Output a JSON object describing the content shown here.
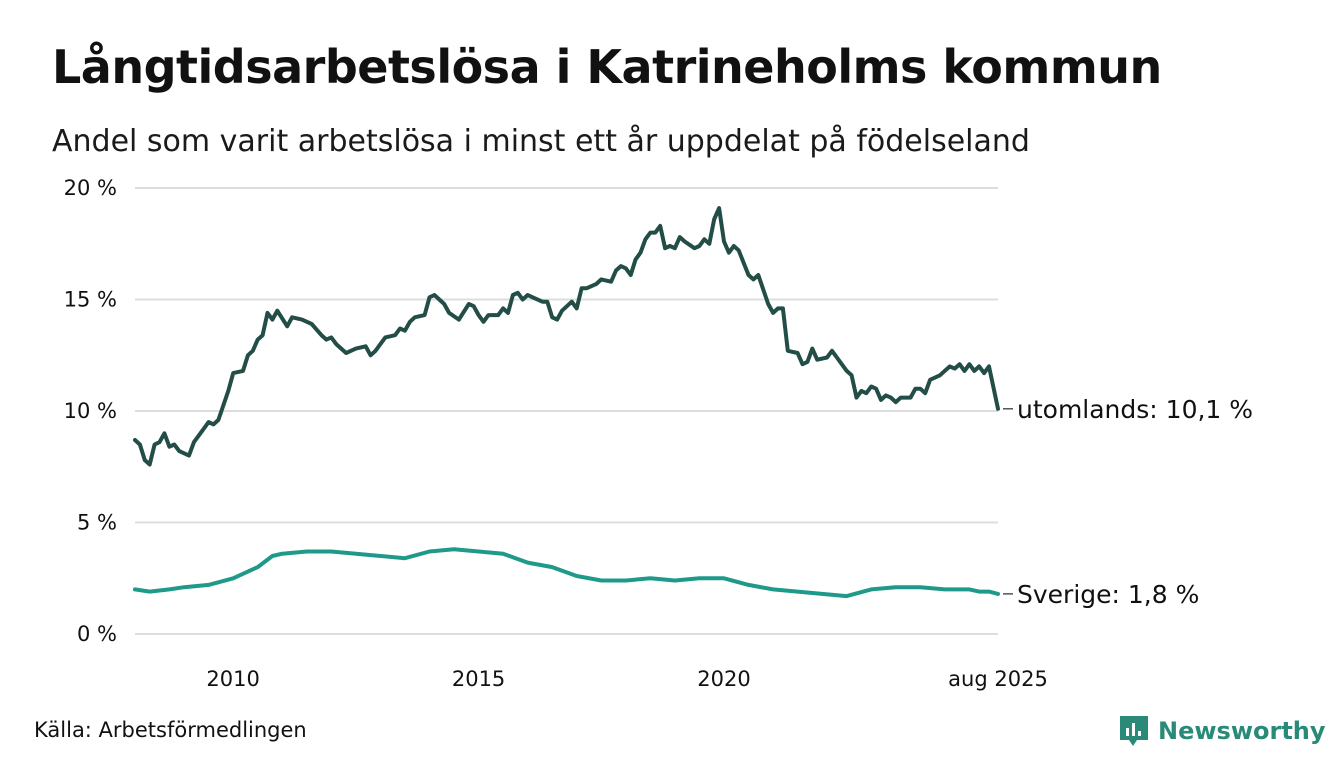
{
  "header": {
    "title": "Långtidsarbetslösa i Katrineholms kommun",
    "subtitle": "Andel som varit arbetslösa i minst ett år uppdelat på födelseland"
  },
  "footer": {
    "source": "Källa: Arbetsförmedlingen",
    "brand": "Newsworthy"
  },
  "colors": {
    "utomlands": "#234d47",
    "sverige": "#1f9a8a",
    "grid": "#dddddd",
    "brand": "#2a8a78"
  },
  "chart_data": {
    "type": "line",
    "x_start": "2008-01",
    "x_end": "2025-08",
    "x_step": "month",
    "xlim": [
      2008.0,
      2025.583
    ],
    "ylim": [
      0,
      20
    ],
    "y_ticks": [
      0,
      5,
      10,
      15,
      20
    ],
    "y_tick_labels": [
      "0 %",
      "5 %",
      "10 %",
      "15 %",
      "20 %"
    ],
    "x_ticks": [
      2010,
      2015,
      2020,
      2025.583
    ],
    "x_tick_labels": [
      "2010",
      "2015",
      "2020",
      "aug 2025"
    ],
    "grid": "horizontal",
    "series": [
      {
        "name": "utomlands",
        "label": "utomlands: 10,1 %",
        "anchors": [
          [
            2008.0,
            8.7
          ],
          [
            2008.1,
            8.5
          ],
          [
            2008.2,
            7.8
          ],
          [
            2008.3,
            7.6
          ],
          [
            2008.4,
            8.5
          ],
          [
            2008.5,
            8.6
          ],
          [
            2008.6,
            9.0
          ],
          [
            2008.7,
            8.4
          ],
          [
            2008.8,
            8.5
          ],
          [
            2008.9,
            8.2
          ],
          [
            2009.1,
            8.0
          ],
          [
            2009.2,
            8.6
          ],
          [
            2009.4,
            9.2
          ],
          [
            2009.5,
            9.5
          ],
          [
            2009.6,
            9.4
          ],
          [
            2009.7,
            9.6
          ],
          [
            2009.9,
            10.9
          ],
          [
            2010.0,
            11.7
          ],
          [
            2010.2,
            11.8
          ],
          [
            2010.3,
            12.5
          ],
          [
            2010.4,
            12.7
          ],
          [
            2010.5,
            13.2
          ],
          [
            2010.6,
            13.4
          ],
          [
            2010.7,
            14.4
          ],
          [
            2010.8,
            14.1
          ],
          [
            2010.9,
            14.5
          ],
          [
            2011.1,
            13.8
          ],
          [
            2011.2,
            14.2
          ],
          [
            2011.4,
            14.1
          ],
          [
            2011.6,
            13.9
          ],
          [
            2011.8,
            13.4
          ],
          [
            2011.9,
            13.2
          ],
          [
            2012.0,
            13.3
          ],
          [
            2012.1,
            13.0
          ],
          [
            2012.3,
            12.6
          ],
          [
            2012.5,
            12.8
          ],
          [
            2012.7,
            12.9
          ],
          [
            2012.8,
            12.5
          ],
          [
            2012.9,
            12.7
          ],
          [
            2013.1,
            13.3
          ],
          [
            2013.3,
            13.4
          ],
          [
            2013.4,
            13.7
          ],
          [
            2013.5,
            13.6
          ],
          [
            2013.6,
            14.0
          ],
          [
            2013.7,
            14.2
          ],
          [
            2013.9,
            14.3
          ],
          [
            2014.0,
            15.1
          ],
          [
            2014.1,
            15.2
          ],
          [
            2014.3,
            14.8
          ],
          [
            2014.4,
            14.4
          ],
          [
            2014.6,
            14.1
          ],
          [
            2014.8,
            14.8
          ],
          [
            2014.9,
            14.7
          ],
          [
            2015.0,
            14.3
          ],
          [
            2015.1,
            14.0
          ],
          [
            2015.2,
            14.3
          ],
          [
            2015.4,
            14.3
          ],
          [
            2015.5,
            14.6
          ],
          [
            2015.6,
            14.4
          ],
          [
            2015.7,
            15.2
          ],
          [
            2015.8,
            15.3
          ],
          [
            2015.9,
            15.0
          ],
          [
            2016.0,
            15.2
          ],
          [
            2016.1,
            15.1
          ],
          [
            2016.3,
            14.9
          ],
          [
            2016.4,
            14.9
          ],
          [
            2016.5,
            14.2
          ],
          [
            2016.6,
            14.1
          ],
          [
            2016.7,
            14.5
          ],
          [
            2016.9,
            14.9
          ],
          [
            2017.0,
            14.6
          ],
          [
            2017.1,
            15.5
          ],
          [
            2017.2,
            15.5
          ],
          [
            2017.4,
            15.7
          ],
          [
            2017.5,
            15.9
          ],
          [
            2017.7,
            15.8
          ],
          [
            2017.8,
            16.3
          ],
          [
            2017.9,
            16.5
          ],
          [
            2018.0,
            16.4
          ],
          [
            2018.1,
            16.1
          ],
          [
            2018.2,
            16.8
          ],
          [
            2018.3,
            17.1
          ],
          [
            2018.4,
            17.7
          ],
          [
            2018.5,
            18.0
          ],
          [
            2018.6,
            18.0
          ],
          [
            2018.7,
            18.3
          ],
          [
            2018.8,
            17.3
          ],
          [
            2018.9,
            17.4
          ],
          [
            2019.0,
            17.3
          ],
          [
            2019.1,
            17.8
          ],
          [
            2019.2,
            17.6
          ],
          [
            2019.4,
            17.3
          ],
          [
            2019.5,
            17.4
          ],
          [
            2019.6,
            17.7
          ],
          [
            2019.7,
            17.5
          ],
          [
            2019.8,
            18.6
          ],
          [
            2019.9,
            19.1
          ],
          [
            2020.0,
            17.6
          ],
          [
            2020.1,
            17.1
          ],
          [
            2020.2,
            17.4
          ],
          [
            2020.3,
            17.2
          ],
          [
            2020.5,
            16.1
          ],
          [
            2020.6,
            15.9
          ],
          [
            2020.7,
            16.1
          ],
          [
            2020.9,
            14.8
          ],
          [
            2021.0,
            14.4
          ],
          [
            2021.1,
            14.6
          ],
          [
            2021.2,
            14.6
          ],
          [
            2021.3,
            12.7
          ],
          [
            2021.5,
            12.6
          ],
          [
            2021.6,
            12.1
          ],
          [
            2021.7,
            12.2
          ],
          [
            2021.8,
            12.8
          ],
          [
            2021.9,
            12.3
          ],
          [
            2022.1,
            12.4
          ],
          [
            2022.2,
            12.7
          ],
          [
            2022.3,
            12.4
          ],
          [
            2022.5,
            11.8
          ],
          [
            2022.6,
            11.6
          ],
          [
            2022.7,
            10.6
          ],
          [
            2022.8,
            10.9
          ],
          [
            2022.9,
            10.8
          ],
          [
            2023.0,
            11.1
          ],
          [
            2023.1,
            11.0
          ],
          [
            2023.2,
            10.5
          ],
          [
            2023.3,
            10.7
          ],
          [
            2023.4,
            10.6
          ],
          [
            2023.5,
            10.4
          ],
          [
            2023.6,
            10.6
          ],
          [
            2023.8,
            10.6
          ],
          [
            2023.9,
            11.0
          ],
          [
            2024.0,
            11.0
          ],
          [
            2024.1,
            10.8
          ],
          [
            2024.2,
            11.4
          ],
          [
            2024.3,
            11.5
          ],
          [
            2024.4,
            11.6
          ],
          [
            2024.6,
            12.0
          ],
          [
            2024.7,
            11.9
          ],
          [
            2024.8,
            12.1
          ],
          [
            2024.9,
            11.8
          ],
          [
            2025.0,
            12.1
          ],
          [
            2025.1,
            11.8
          ],
          [
            2025.2,
            12.0
          ],
          [
            2025.3,
            11.7
          ],
          [
            2025.4,
            12.0
          ],
          [
            2025.583,
            10.1
          ]
        ]
      },
      {
        "name": "sverige",
        "label": "Sverige:  1,8 %",
        "anchors": [
          [
            2008.0,
            2.0
          ],
          [
            2008.3,
            1.9
          ],
          [
            2008.7,
            2.0
          ],
          [
            2009.0,
            2.1
          ],
          [
            2009.5,
            2.2
          ],
          [
            2010.0,
            2.5
          ],
          [
            2010.5,
            3.0
          ],
          [
            2010.8,
            3.5
          ],
          [
            2011.0,
            3.6
          ],
          [
            2011.5,
            3.7
          ],
          [
            2012.0,
            3.7
          ],
          [
            2012.5,
            3.6
          ],
          [
            2013.0,
            3.5
          ],
          [
            2013.5,
            3.4
          ],
          [
            2014.0,
            3.7
          ],
          [
            2014.5,
            3.8
          ],
          [
            2015.0,
            3.7
          ],
          [
            2015.5,
            3.6
          ],
          [
            2016.0,
            3.2
          ],
          [
            2016.5,
            3.0
          ],
          [
            2017.0,
            2.6
          ],
          [
            2017.5,
            2.4
          ],
          [
            2018.0,
            2.4
          ],
          [
            2018.5,
            2.5
          ],
          [
            2019.0,
            2.4
          ],
          [
            2019.5,
            2.5
          ],
          [
            2020.0,
            2.5
          ],
          [
            2020.5,
            2.2
          ],
          [
            2021.0,
            2.0
          ],
          [
            2021.5,
            1.9
          ],
          [
            2022.0,
            1.8
          ],
          [
            2022.5,
            1.7
          ],
          [
            2023.0,
            2.0
          ],
          [
            2023.5,
            2.1
          ],
          [
            2024.0,
            2.1
          ],
          [
            2024.5,
            2.0
          ],
          [
            2025.0,
            2.0
          ],
          [
            2025.2,
            1.9
          ],
          [
            2025.4,
            1.9
          ],
          [
            2025.583,
            1.8
          ]
        ]
      }
    ]
  }
}
